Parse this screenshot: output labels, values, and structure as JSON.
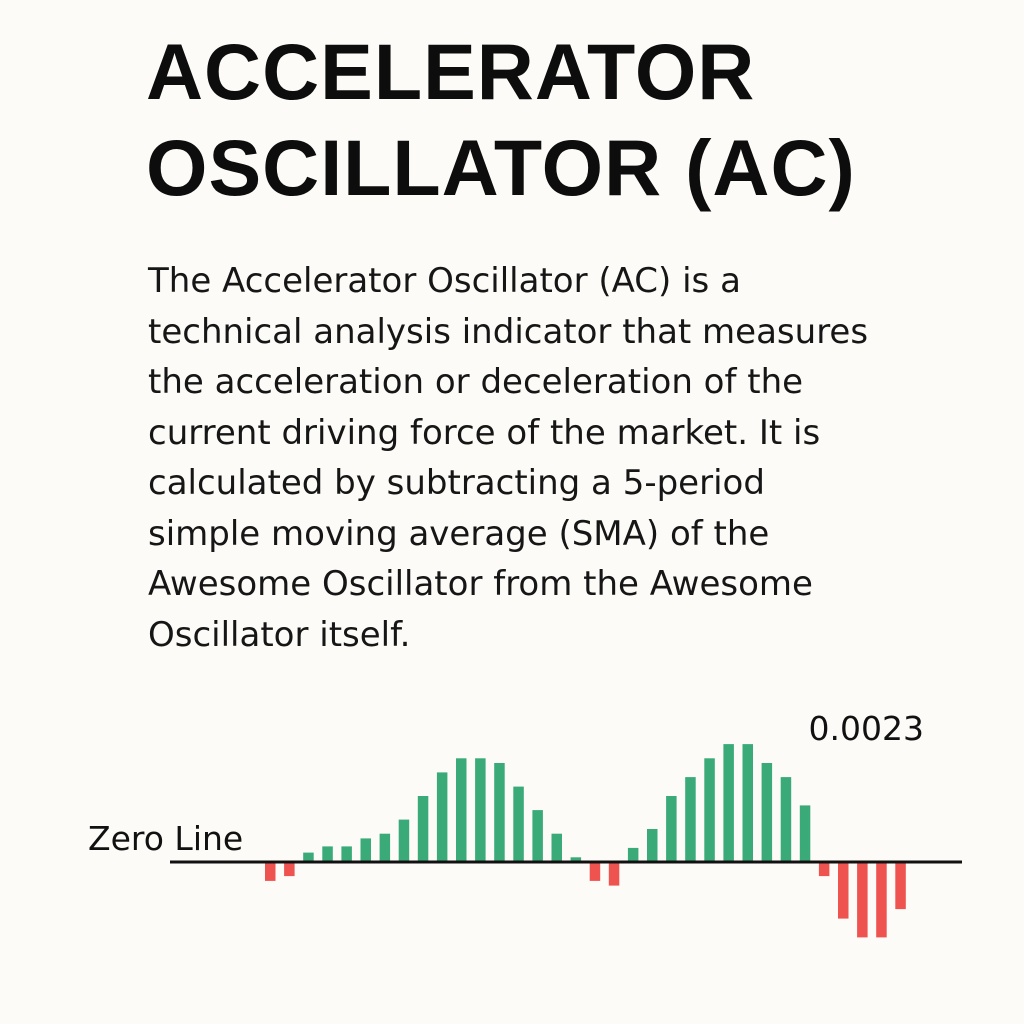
{
  "title_lines": [
    "ACCELERATOR",
    "OSCILLATOR (AC)"
  ],
  "description_lines": [
    "The Accelerator Oscillator (AC) is a",
    "technical analysis indicator that measures",
    "the acceleration or deceleration of the",
    "current driving force of the market. It is",
    "calculated by subtracting a 5-period",
    "simple moving average (SMA) of the",
    "Awesome Oscillator from the Awesome",
    "Oscillator itself."
  ],
  "colors": {
    "positive": "#3aaa78",
    "negative": "#ef5350",
    "zero_line": "#111111",
    "background": "#fdfbf8"
  },
  "chart_data": {
    "type": "bar",
    "zero_line_label": "Zero Line",
    "value_annotation": "0.0023",
    "values": [
      -0.0004,
      -0.0003,
      0.0002,
      0.00033,
      0.00033,
      0.0005,
      0.0006,
      0.0009,
      0.0014,
      0.0019,
      0.0022,
      0.0022,
      0.0021,
      0.0016,
      0.0011,
      0.0006,
      0.0001,
      -0.0004,
      -0.0005,
      0.0003,
      0.0007,
      0.0014,
      0.0018,
      0.0022,
      0.0025,
      0.0025,
      0.0021,
      0.0018,
      0.0012,
      -0.0003,
      -0.0012,
      -0.0016,
      -0.0016,
      -0.001
    ],
    "ylim": [
      -0.0018,
      0.0028
    ]
  }
}
